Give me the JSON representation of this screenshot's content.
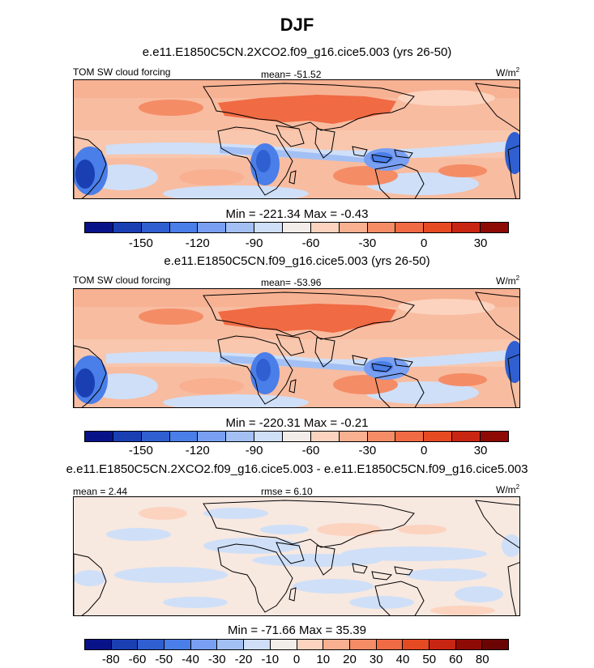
{
  "title": "DJF",
  "panels": [
    {
      "case_title": "e.e11.E1850C5CN.2XCO2.f09_g16.cice5.003 (yrs 26-50)",
      "left_label": "TOM SW cloud forcing",
      "center_label": "mean= -51.52",
      "units": "W/m",
      "units_sup": "2",
      "minmax": "Min = -221.34 Max =  -0.43",
      "colorbar_ticks": [
        "-150",
        "-120",
        "-90",
        "-60",
        "-30",
        "0",
        "30"
      ]
    },
    {
      "case_title": "e.e11.E1850C5CN.f09_g16.cice5.003 (yrs 26-50)",
      "left_label": "TOM SW cloud forcing",
      "center_label": "mean= -53.96",
      "units": "W/m",
      "units_sup": "2",
      "minmax": "Min = -220.31 Max =  -0.21",
      "colorbar_ticks": [
        "-150",
        "-120",
        "-90",
        "-60",
        "-30",
        "0",
        "30"
      ]
    },
    {
      "case_title": "e.e11.E1850C5CN.2XCO2.f09_g16.cice5.003 - e.e11.E1850C5CN.f09_g16.cice5.003",
      "left_label": "mean =   2.44",
      "center_label": "rmse =   6.10",
      "units": "W/m",
      "units_sup": "2",
      "minmax": "Min = -71.66 Max =  35.39",
      "colorbar_ticks": [
        "-80",
        "-60",
        "-50",
        "-40",
        "-30",
        "-20",
        "-10",
        "0",
        "10",
        "20",
        "30",
        "40",
        "50",
        "60",
        "80"
      ]
    }
  ],
  "chart_data": [
    {
      "type": "heatmap",
      "title": "DJF",
      "subtitle": "e.e11.E1850C5CN.2XCO2.f09_g16.cice5.003 (yrs 26-50)",
      "variable": "TOM SW cloud forcing",
      "units": "W/m2",
      "mean": -51.52,
      "min": -221.34,
      "max": -0.43,
      "colorbar_levels": [
        -165,
        -150,
        -135,
        -120,
        -105,
        -90,
        -75,
        -60,
        -45,
        -30,
        -15,
        0,
        15,
        30,
        45
      ],
      "colorbar_labels": [
        -150,
        -120,
        -90,
        -60,
        -30,
        0,
        30
      ],
      "colors": [
        "#08138a",
        "#1a3fb3",
        "#2f5fd0",
        "#4a7ee8",
        "#789ff2",
        "#a3c0f5",
        "#cfdff8",
        "#f3ede9",
        "#fcd3bf",
        "#f8b090",
        "#f48c66",
        "#f06a43",
        "#e54a22",
        "#c82612",
        "#8e0a05"
      ]
    },
    {
      "type": "heatmap",
      "subtitle": "e.e11.E1850C5CN.f09_g16.cice5.003 (yrs 26-50)",
      "variable": "TOM SW cloud forcing",
      "units": "W/m2",
      "mean": -53.96,
      "min": -220.31,
      "max": -0.21,
      "colorbar_levels": [
        -165,
        -150,
        -135,
        -120,
        -105,
        -90,
        -75,
        -60,
        -45,
        -30,
        -15,
        0,
        15,
        30,
        45
      ],
      "colorbar_labels": [
        -150,
        -120,
        -90,
        -60,
        -30,
        0,
        30
      ],
      "colors": [
        "#08138a",
        "#1a3fb3",
        "#2f5fd0",
        "#4a7ee8",
        "#789ff2",
        "#a3c0f5",
        "#cfdff8",
        "#f3ede9",
        "#fcd3bf",
        "#f8b090",
        "#f48c66",
        "#f06a43",
        "#e54a22",
        "#c82612",
        "#8e0a05"
      ]
    },
    {
      "type": "heatmap",
      "subtitle": "e.e11.E1850C5CN.2XCO2.f09_g16.cice5.003 - e.e11.E1850C5CN.f09_g16.cice5.003",
      "units": "W/m2",
      "mean": 2.44,
      "rmse": 6.1,
      "min": -71.66,
      "max": 35.39,
      "colorbar_labels": [
        -80,
        -60,
        -50,
        -40,
        -30,
        -20,
        -10,
        0,
        10,
        20,
        30,
        40,
        50,
        60,
        80
      ],
      "colors": [
        "#08138a",
        "#1a3fb3",
        "#2f5fd0",
        "#4a7ee8",
        "#789ff2",
        "#a3c0f5",
        "#cfdff8",
        "#f3ede9",
        "#fcd3bf",
        "#f8b090",
        "#f48c66",
        "#f06a43",
        "#e54a22",
        "#c82612",
        "#8e0a05",
        "#6a0503"
      ]
    }
  ]
}
